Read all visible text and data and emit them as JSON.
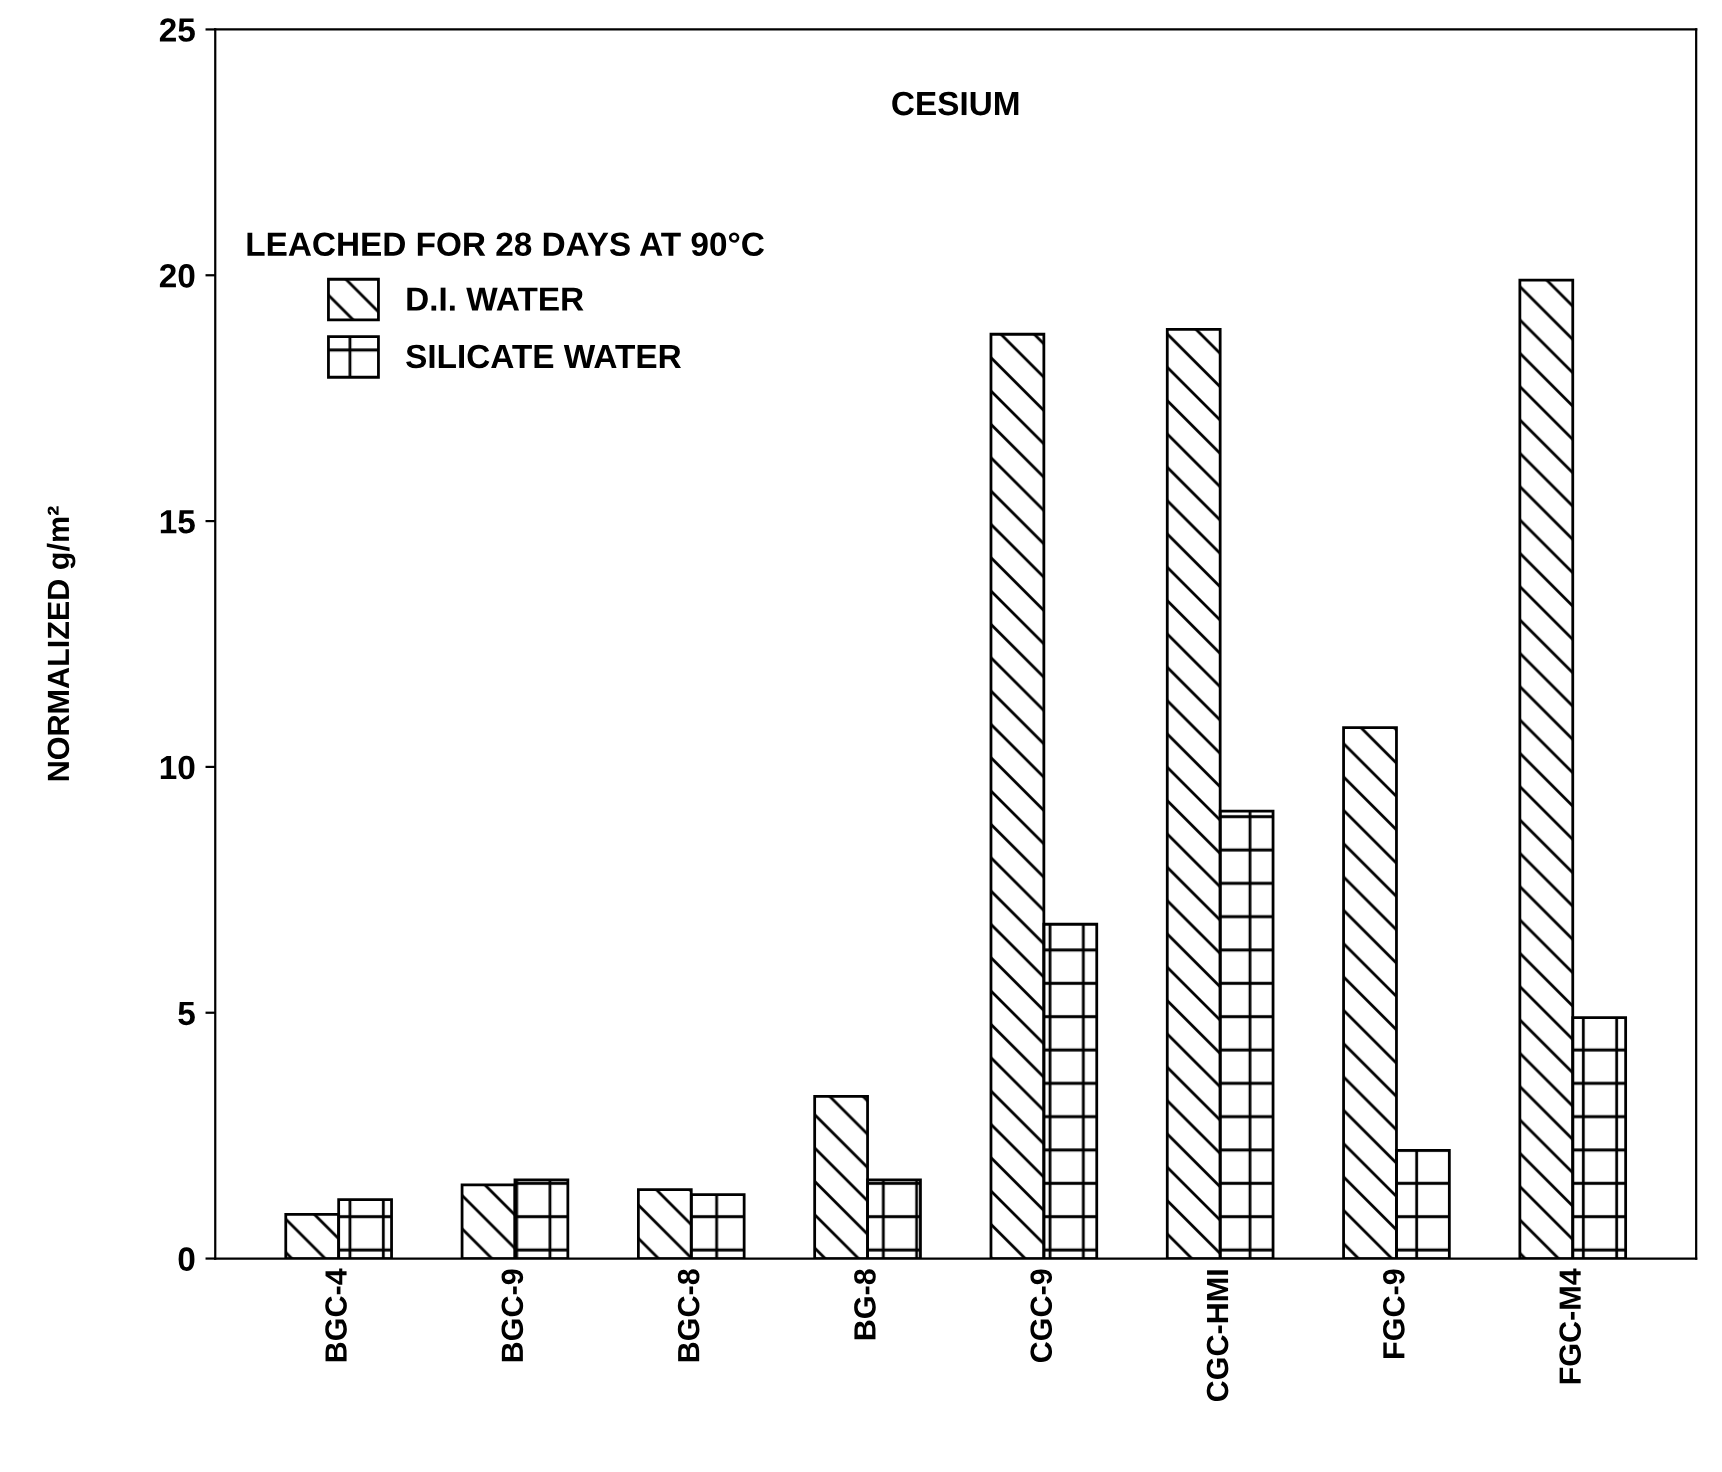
{
  "chart_data": {
    "type": "bar",
    "title": "CESIUM",
    "ylabel": "NORMALIZED g/m²",
    "legend_title": "LEACHED FOR 28 DAYS AT 90°C",
    "categories": [
      "BGC-4",
      "BGC-9",
      "BGC-8",
      "BG-8",
      "CGC-9",
      "CGC-HMI",
      "FGC-9",
      "FGC-M4"
    ],
    "series": [
      {
        "name": "D.I. WATER",
        "color": "#000000",
        "values": [
          0.9,
          1.5,
          1.4,
          3.3,
          18.8,
          18.9,
          10.8,
          19.9
        ]
      },
      {
        "name": "SILICATE WATER",
        "color": "#000000",
        "values": [
          1.2,
          1.6,
          1.3,
          1.6,
          6.8,
          9.1,
          2.2,
          4.9
        ]
      }
    ],
    "ylim": [
      0,
      25
    ],
    "yticks": [
      0,
      5,
      10,
      15,
      20,
      25
    ],
    "grid": false,
    "legend": "top left"
  }
}
